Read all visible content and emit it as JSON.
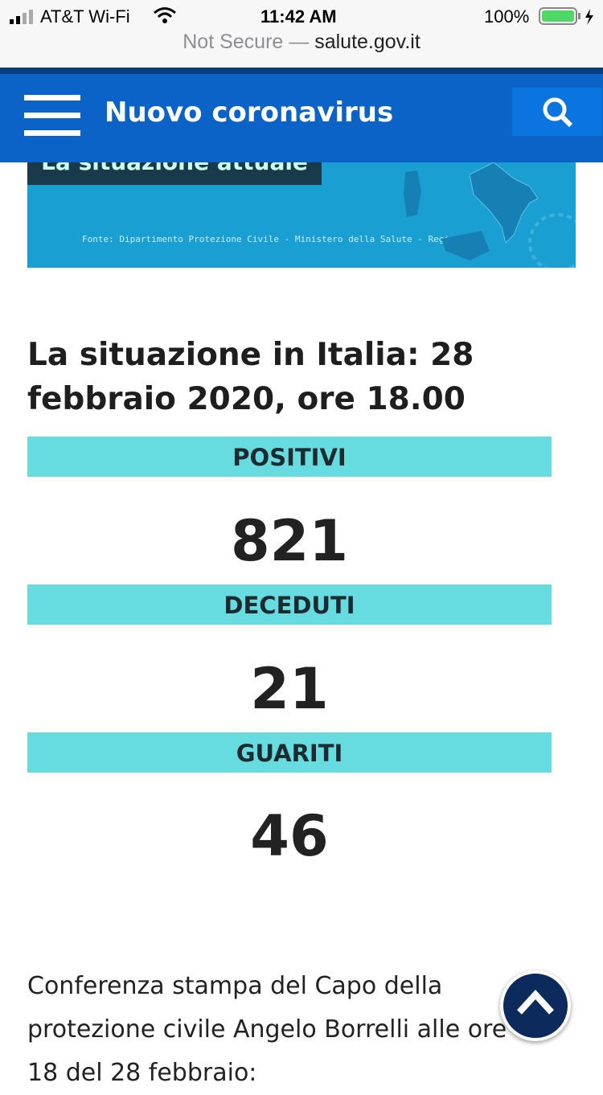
{
  "status_bar": {
    "carrier": "AT&T Wi-Fi",
    "time": "11:42 AM",
    "battery": "100%"
  },
  "address_bar": {
    "security": "Not Secure —",
    "domain": "salute.gov.it"
  },
  "header": {
    "title": "Nuovo coronavirus"
  },
  "banner": {
    "title": "La situazione attuale",
    "source": "Fonte: Dipartimento Protezione Civile - Ministero della Salute - Regioni"
  },
  "heading": "La situazione in Italia: 28 febbraio 2020, ore 18.00",
  "stats": [
    {
      "label": "POSITIVI",
      "value": 821
    },
    {
      "label": "DECEDUTI",
      "value": 21
    },
    {
      "label": "GUARITI",
      "value": 46
    }
  ],
  "paragraph": "Conferenza stampa del Capo della protezione civile Angelo Borrelli alle ore 18 del 28 febbraio:"
}
